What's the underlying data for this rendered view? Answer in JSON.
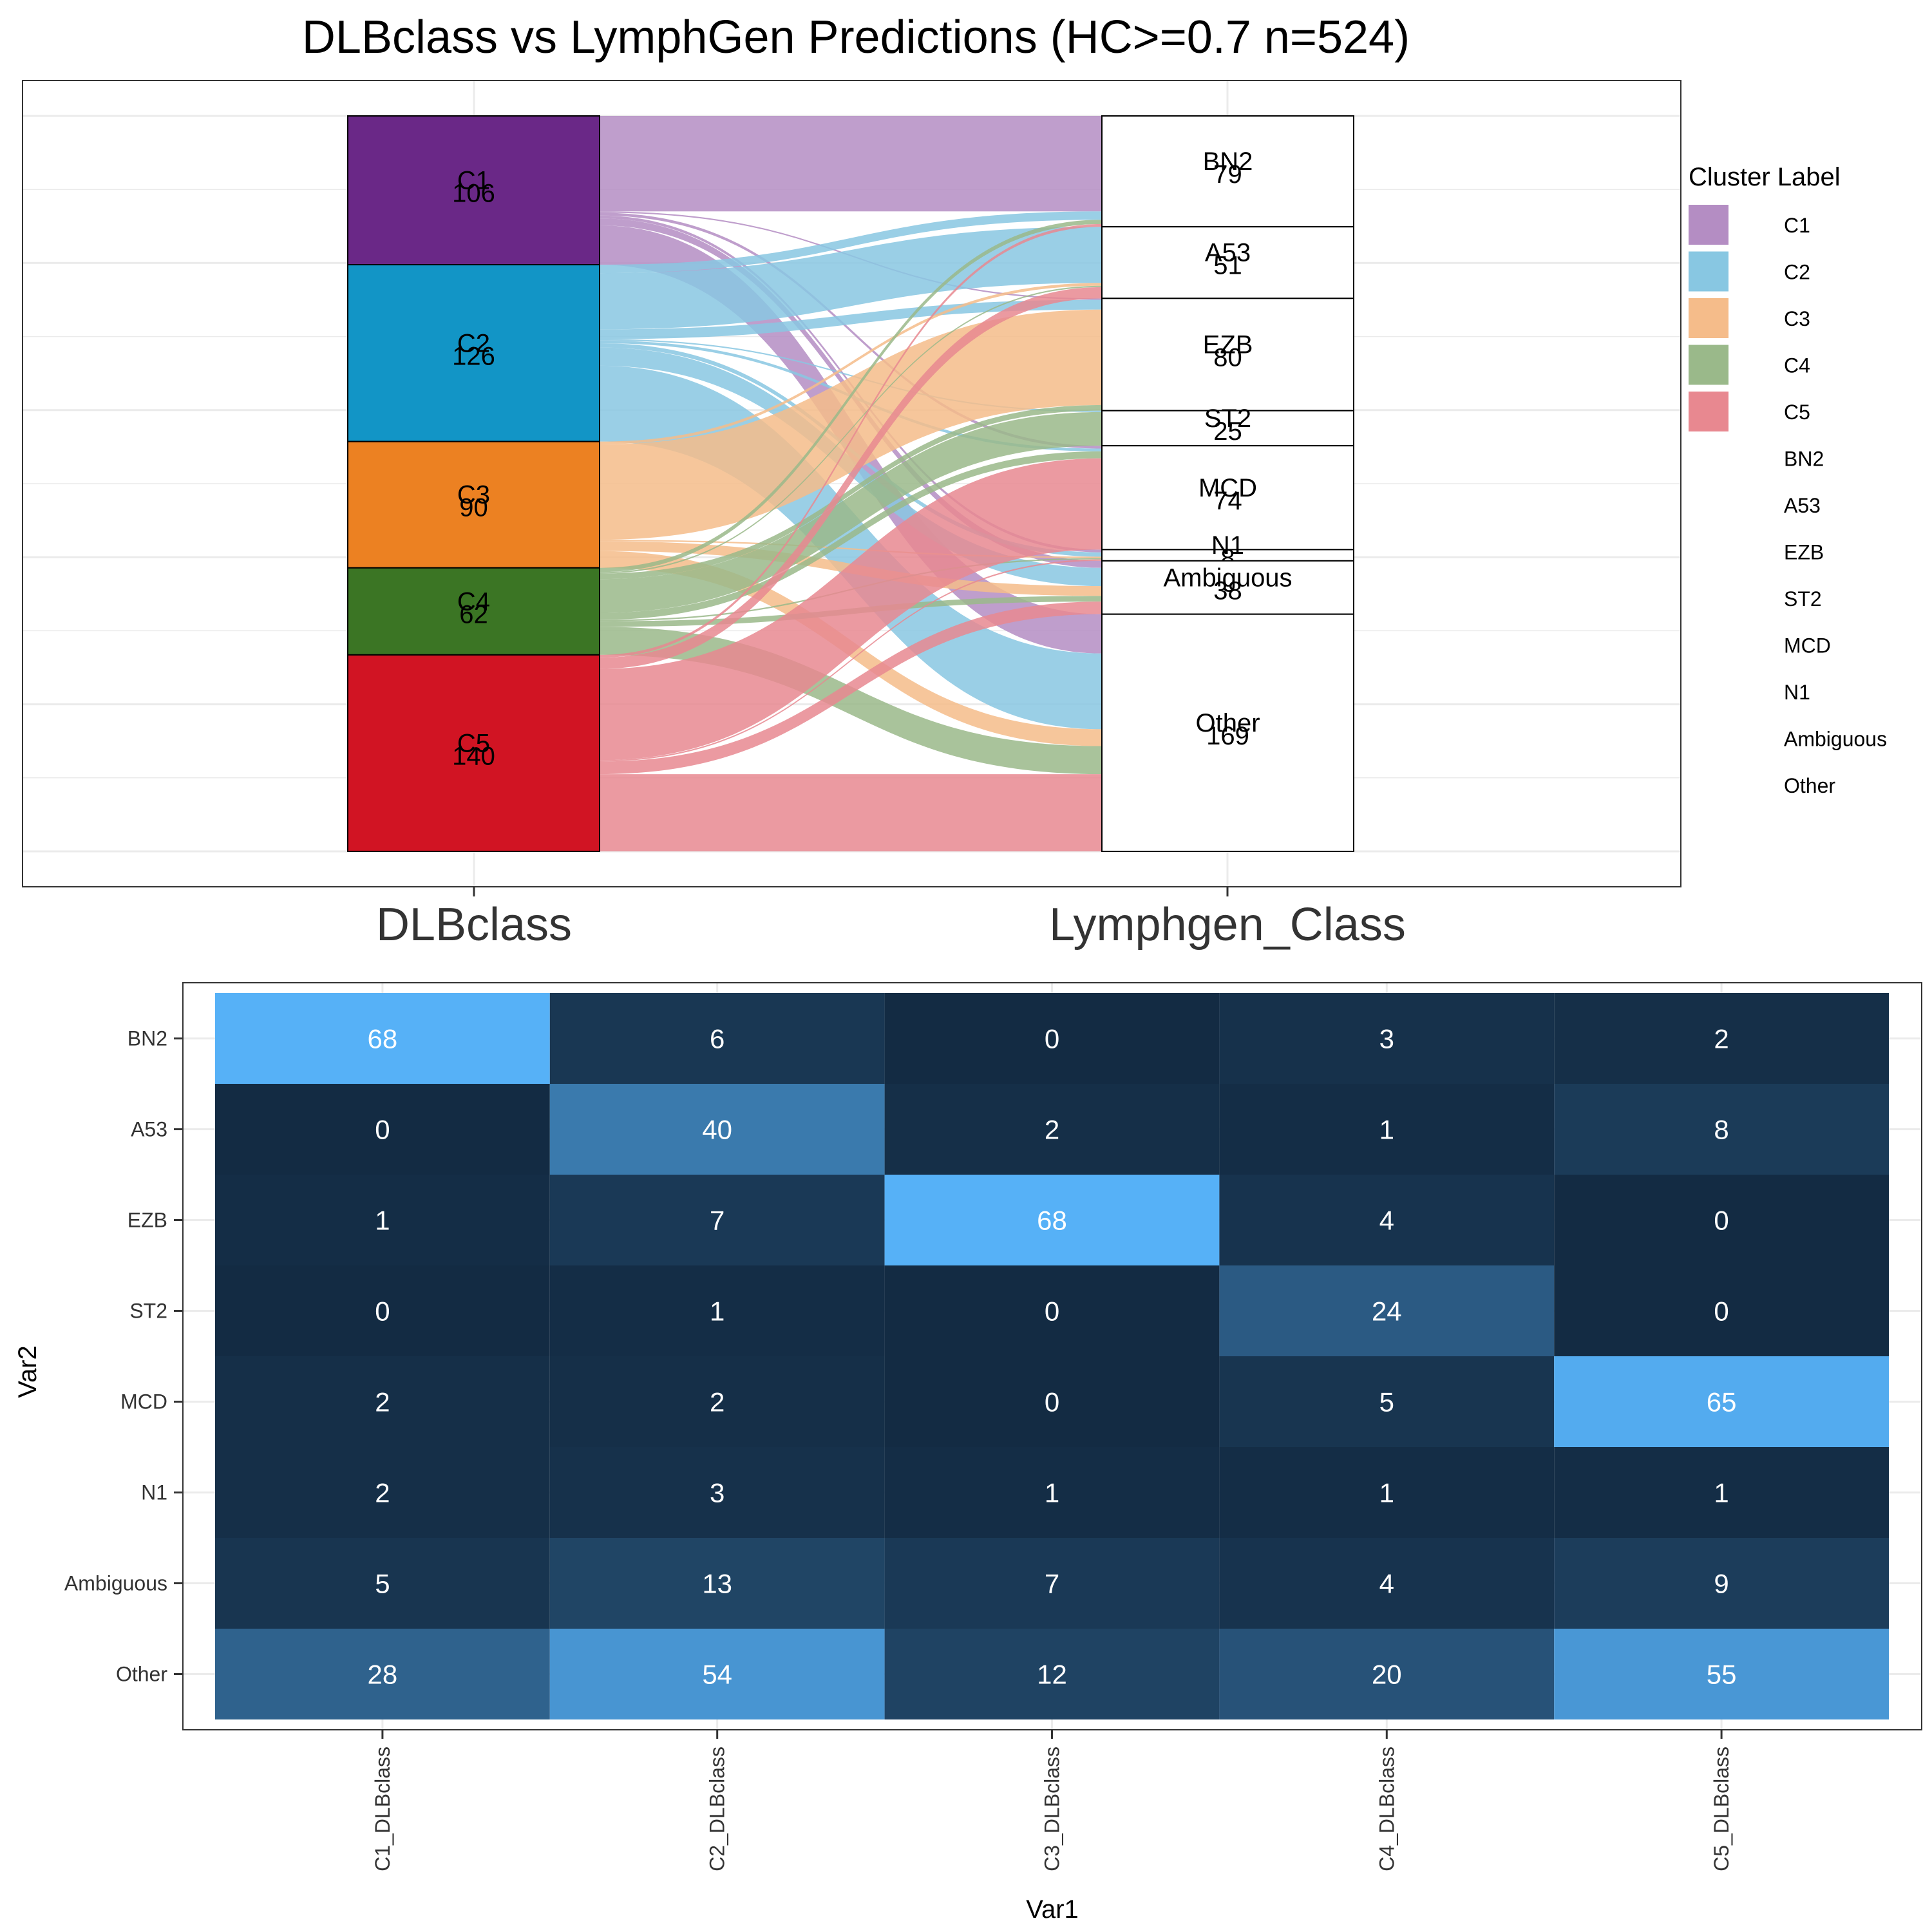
{
  "chart_data": [
    {
      "type": "alluvial",
      "title": "DLBclass vs LymphGen Predictions (HC>=0.7 n=524)",
      "axis_labels": [
        "DLBclass",
        "Lymphgen_Class"
      ],
      "left_nodes": [
        {
          "label": "C1",
          "count": "106",
          "color": "#6A2887"
        },
        {
          "label": "C2",
          "count": "126",
          "color": "#1295C6"
        },
        {
          "label": "C3",
          "count": "90",
          "color": "#EC8122"
        },
        {
          "label": "C4",
          "count": "62",
          "color": "#3B7524"
        },
        {
          "label": "C5",
          "count": "140",
          "color": "#D11423"
        }
      ],
      "right_nodes": [
        {
          "label": "BN2",
          "count": "79"
        },
        {
          "label": "A53",
          "count": "51"
        },
        {
          "label": "EZB",
          "count": "80"
        },
        {
          "label": "ST2",
          "count": "25"
        },
        {
          "label": "MCD",
          "count": "74"
        },
        {
          "label": "N1",
          "count": "8"
        },
        {
          "label": "Ambiguous",
          "count": "38"
        },
        {
          "label": "Other",
          "count": "169"
        }
      ],
      "flow_colors": [
        "#B48DC3",
        "#88C7E2",
        "#F5BC8A",
        "#9AB98A",
        "#E88890"
      ],
      "legend": {
        "title": "Cluster Label",
        "items": [
          {
            "label": "C1",
            "color": "#B48DC3"
          },
          {
            "label": "C2",
            "color": "#88C7E2"
          },
          {
            "label": "C3",
            "color": "#F5BC8A"
          },
          {
            "label": "C4",
            "color": "#9AB98A"
          },
          {
            "label": "C5",
            "color": "#E88890"
          },
          {
            "label": "BN2",
            "color": ""
          },
          {
            "label": "A53",
            "color": ""
          },
          {
            "label": "EZB",
            "color": ""
          },
          {
            "label": "ST2",
            "color": ""
          },
          {
            "label": "MCD",
            "color": ""
          },
          {
            "label": "N1",
            "color": ""
          },
          {
            "label": "Ambiguous",
            "color": ""
          },
          {
            "label": "Other",
            "color": ""
          }
        ]
      }
    },
    {
      "type": "heatmap",
      "xlabel": "Var1",
      "ylabel": "Var2",
      "x_categories": [
        "C1_DLBclass",
        "C2_DLBclass",
        "C3_DLBclass",
        "C4_DLBclass",
        "C5_DLBclass"
      ],
      "y_categories": [
        "BN2",
        "A53",
        "EZB",
        "ST2",
        "MCD",
        "N1",
        "Ambiguous",
        "Other"
      ],
      "values": [
        [
          68,
          6,
          0,
          3,
          2
        ],
        [
          0,
          40,
          2,
          1,
          8
        ],
        [
          1,
          7,
          68,
          4,
          0
        ],
        [
          0,
          1,
          0,
          24,
          0
        ],
        [
          2,
          2,
          0,
          5,
          65
        ],
        [
          2,
          3,
          1,
          1,
          1
        ],
        [
          5,
          13,
          7,
          4,
          9
        ],
        [
          28,
          54,
          12,
          20,
          55
        ]
      ],
      "color_low": "#132B43",
      "color_high": "#56B1F7"
    }
  ]
}
